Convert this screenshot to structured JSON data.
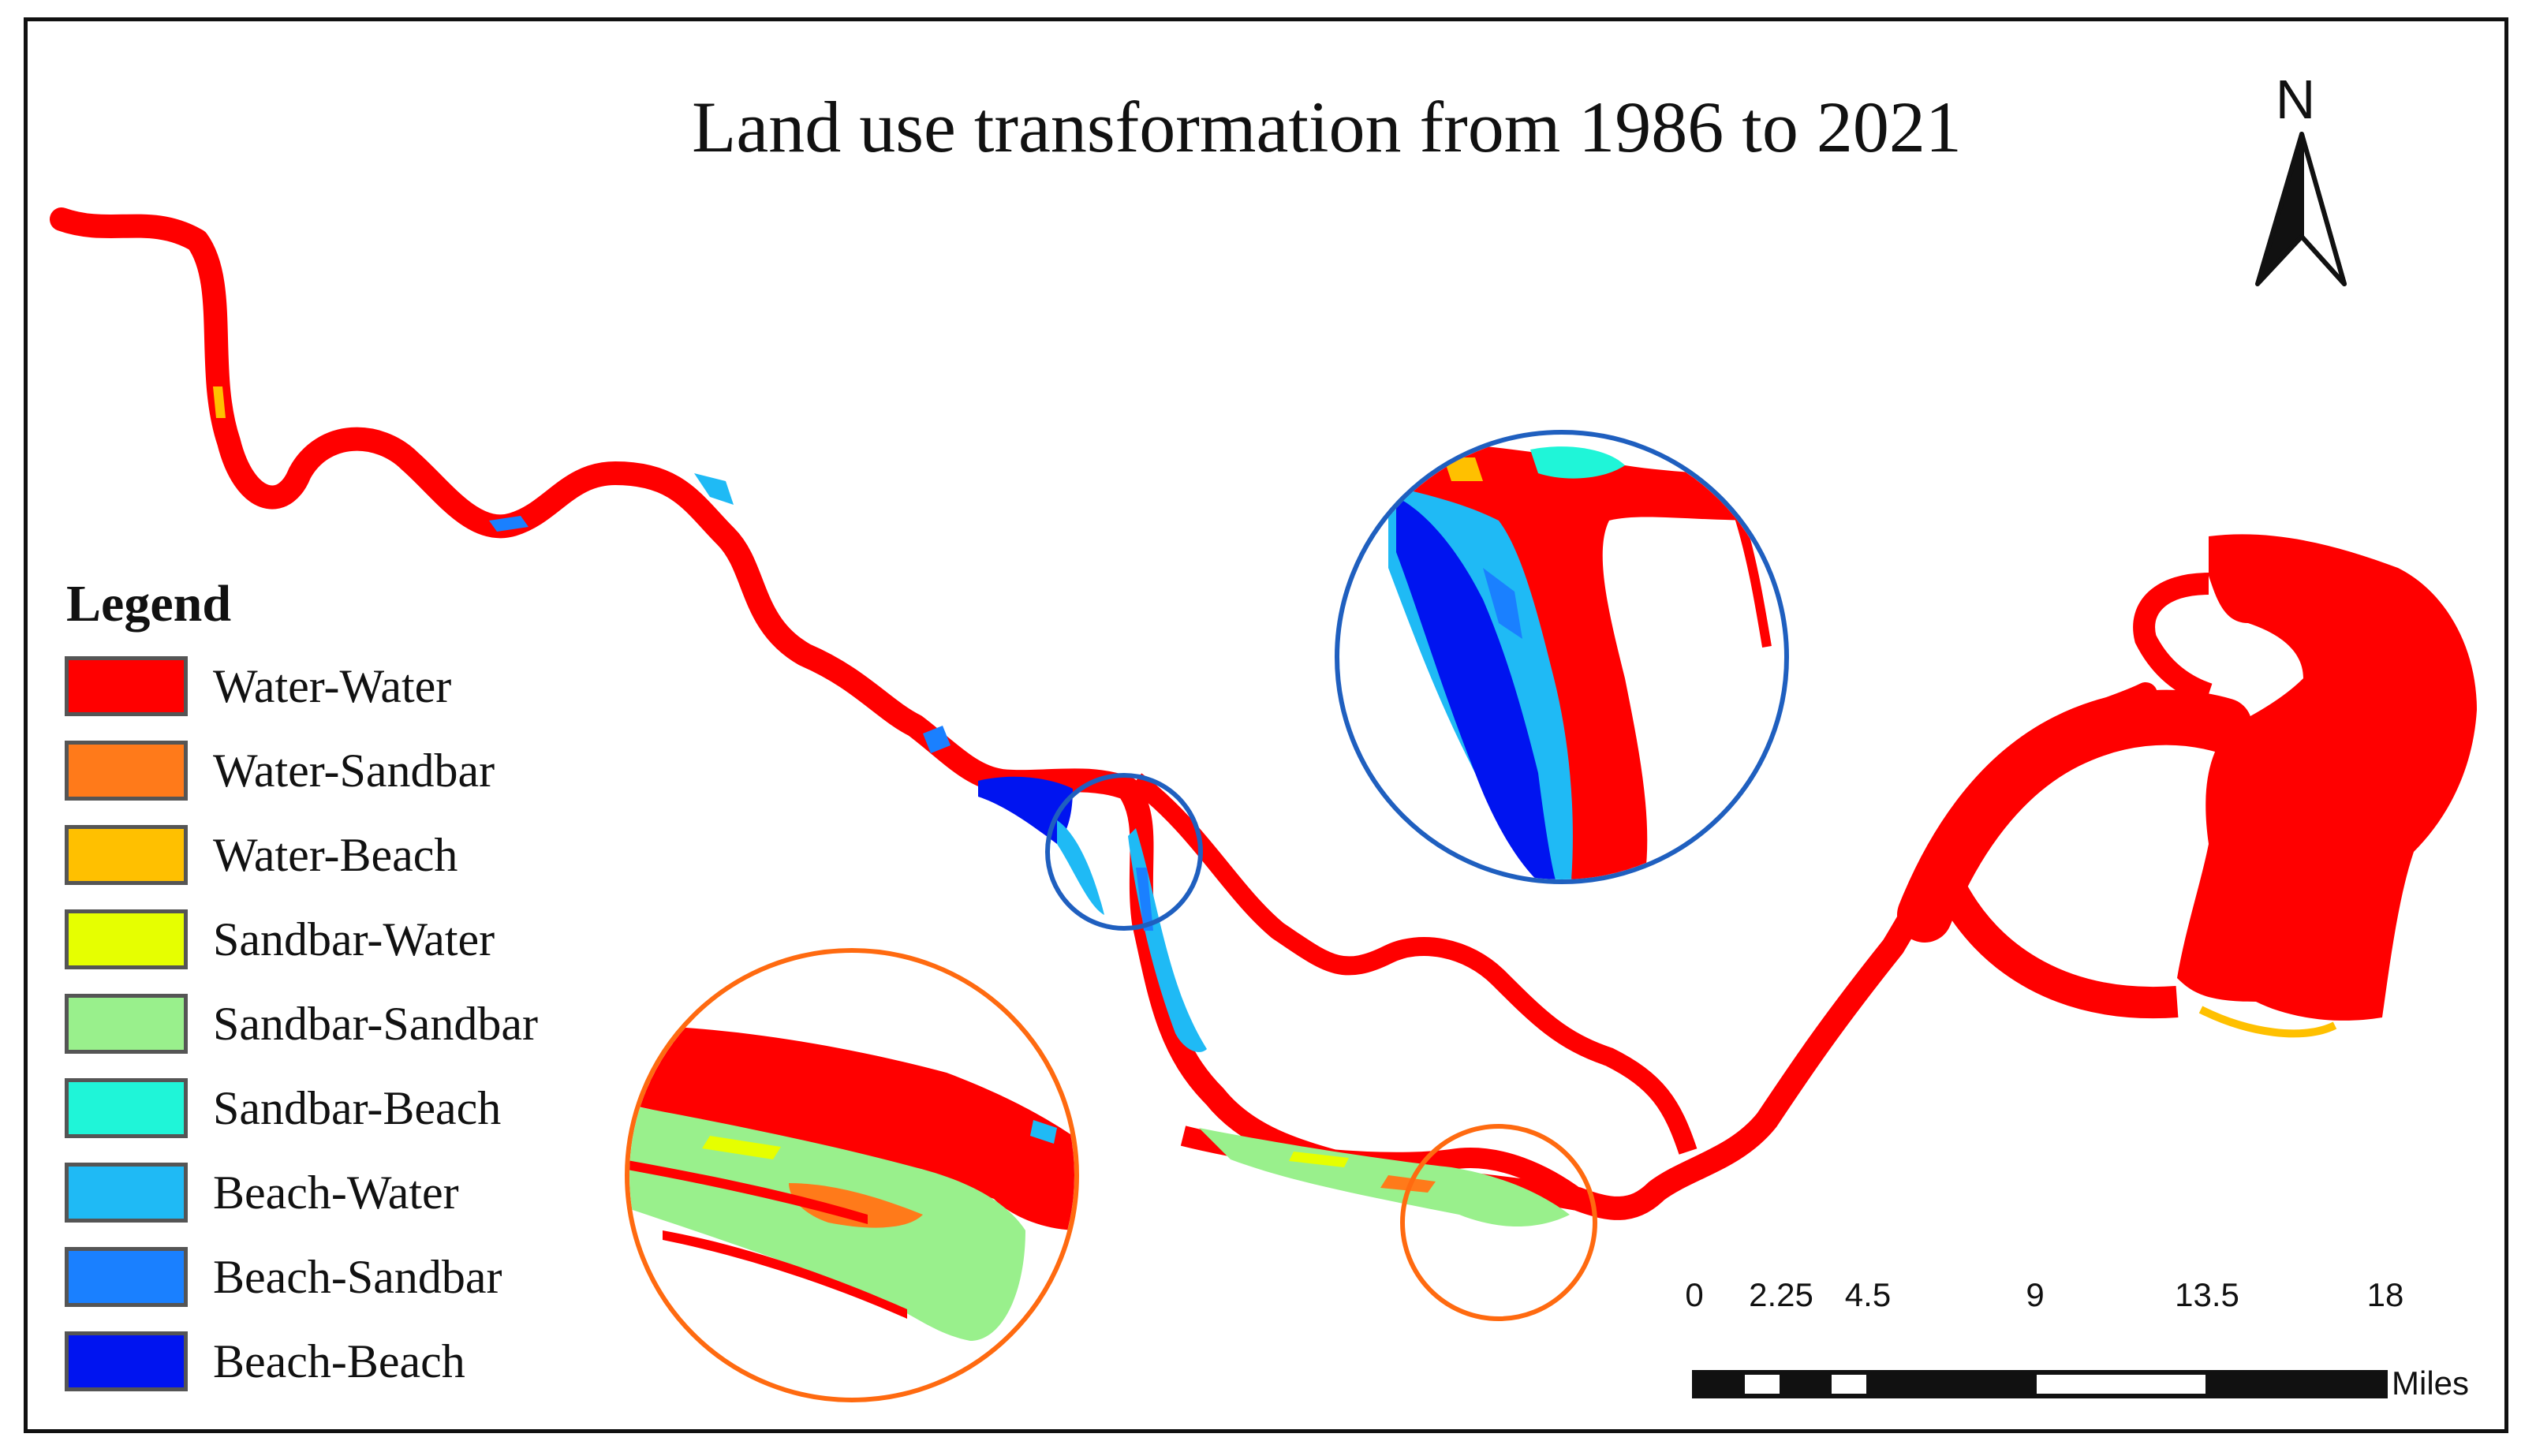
{
  "map": {
    "title": "Land use transformation from 1986 to 2021"
  },
  "legend": {
    "title": "Legend",
    "items": [
      {
        "label": "Water-Water",
        "color": "#ff0000"
      },
      {
        "label": "Water-Sandbar",
        "color": "#ff7a1a"
      },
      {
        "label": "Water-Beach",
        "color": "#ffc000"
      },
      {
        "label": "Sandbar-Water",
        "color": "#e6ff00"
      },
      {
        "label": "Sandbar-Sandbar",
        "color": "#99f08c"
      },
      {
        "label": "Sandbar-Beach",
        "color": "#1ff5d8"
      },
      {
        "label": "Beach-Water",
        "color": "#1fbaf5"
      },
      {
        "label": "Beach-Sandbar",
        "color": "#1a80ff"
      },
      {
        "label": "Beach-Beach",
        "color": "#0014f0"
      }
    ]
  },
  "scale_bar": {
    "ticks": [
      "0",
      "2.25",
      "4.5",
      "9",
      "13.5",
      "18"
    ],
    "units": "Miles"
  },
  "north_arrow": {
    "label": "N",
    "icon": "north-arrow-icon"
  },
  "callouts": [
    {
      "name": "upper-bend-inset",
      "color": "#1f5fbf"
    },
    {
      "name": "lower-reach-inset",
      "color": "#ff6a10"
    }
  ]
}
